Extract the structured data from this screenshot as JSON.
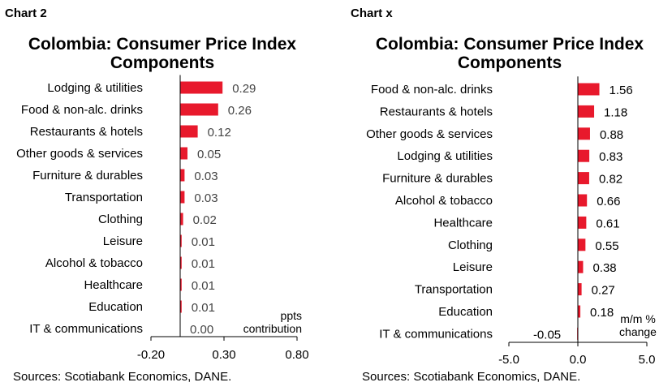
{
  "charts": [
    {
      "label": "Chart 2",
      "title_line1": "Colombia: Consumer Price Index",
      "title_line2": "Components",
      "unit_line1": "ppts",
      "unit_line2": "contribution",
      "source": "Sources: Scotiabank Economics, DANE.",
      "tick_labels": [
        "-0.20",
        "0.30",
        "0.80"
      ],
      "value_labels": [
        "0.29",
        "0.26",
        "0.12",
        "0.05",
        "0.03",
        "0.03",
        "0.02",
        "0.01",
        "0.01",
        "0.01",
        "0.01",
        "0.00"
      ]
    },
    {
      "label": "Chart x",
      "title_line1": "Colombia: Consumer Price Index",
      "title_line2": "Components",
      "unit_line1": "m/m %",
      "unit_line2": "change",
      "source": "Sources: Scotiabank Economics, DANE.",
      "tick_labels": [
        "-5.0",
        "0.0",
        "5.0"
      ],
      "value_labels": [
        "1.56",
        "1.18",
        "0.88",
        "0.83",
        "0.82",
        "0.66",
        "0.61",
        "0.55",
        "0.38",
        "0.27",
        "0.18",
        "-0.05"
      ]
    }
  ],
  "chart_data": [
    {
      "type": "bar",
      "orientation": "horizontal",
      "title": "Colombia: Consumer Price Index Components",
      "categories": [
        "Lodging & utilities",
        "Food & non-alc. drinks",
        "Restaurants & hotels",
        "Other goods & services",
        "Furniture & durables",
        "Transportation",
        "Clothing",
        "Leisure",
        "Alcohol & tobacco",
        "Healthcare",
        "Education",
        "IT & communications"
      ],
      "values": [
        0.29,
        0.26,
        0.12,
        0.05,
        0.03,
        0.03,
        0.02,
        0.01,
        0.01,
        0.01,
        0.01,
        0.0
      ],
      "xlim": [
        -0.2,
        0.8
      ],
      "xticks": [
        -0.2,
        0.3,
        0.8
      ],
      "xlabel": "ppts contribution",
      "bar_color": "#e8192c",
      "grid": false
    },
    {
      "type": "bar",
      "orientation": "horizontal",
      "title": "Colombia: Consumer Price Index Components",
      "categories": [
        "Food & non-alc. drinks",
        "Restaurants & hotels",
        "Other goods & services",
        "Lodging & utilities",
        "Furniture & durables",
        "Alcohol & tobacco",
        "Healthcare",
        "Clothing",
        "Leisure",
        "Transportation",
        "Education",
        "IT & communications"
      ],
      "values": [
        1.56,
        1.18,
        0.88,
        0.83,
        0.82,
        0.66,
        0.61,
        0.55,
        0.38,
        0.27,
        0.18,
        -0.05
      ],
      "xlim": [
        -5.0,
        5.0
      ],
      "xticks": [
        -5.0,
        0.0,
        5.0
      ],
      "xlabel": "m/m % change",
      "bar_color": "#e8192c",
      "grid": false
    }
  ]
}
